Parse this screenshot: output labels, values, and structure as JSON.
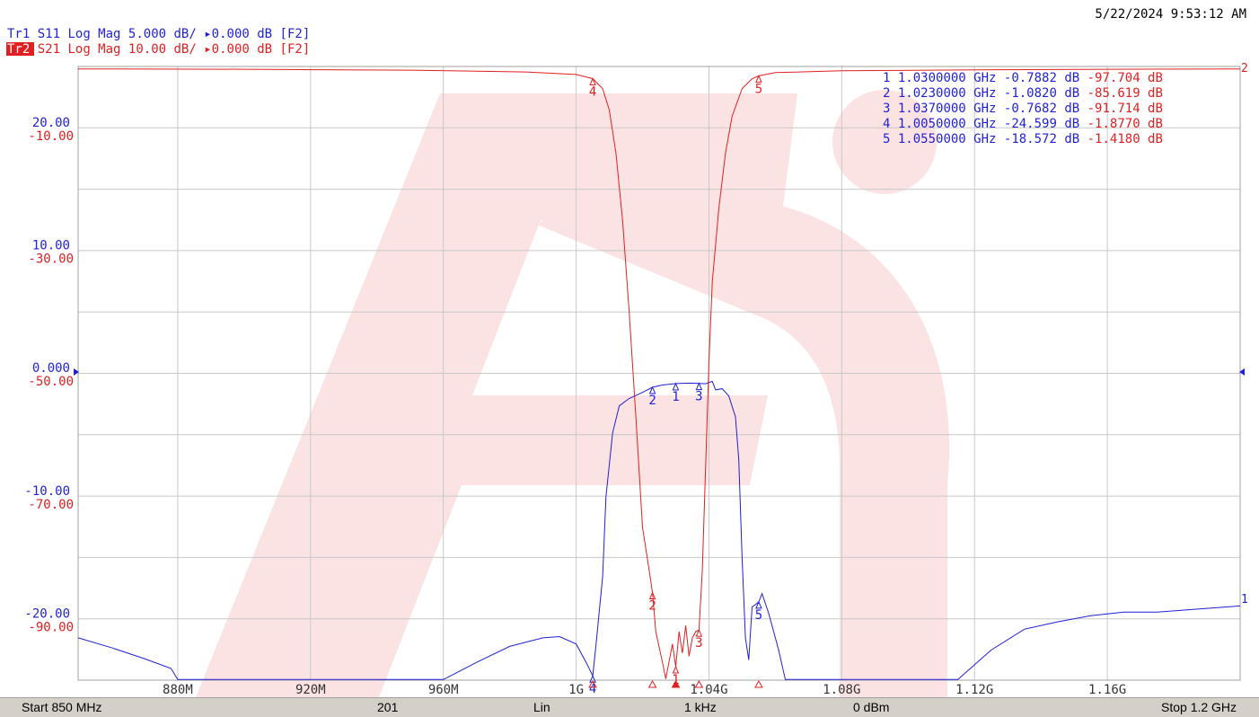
{
  "timestamp": "5/22/2024 9:53:12 AM",
  "traces": [
    {
      "tag": "Tr1",
      "param": "S11",
      "format": "Log Mag",
      "scale": "5.000 dB/",
      "ref_sym": "▸",
      "ref": "0.000 dB",
      "channel": "[F2]",
      "color": "#1f1fd6",
      "active": false
    },
    {
      "tag": "Tr2",
      "param": "S21",
      "format": "Log Mag",
      "scale": "10.00 dB/",
      "ref_sym": "▸",
      "ref": "0.000 dB",
      "channel": "[F2]",
      "color": "#e02020",
      "active": true
    }
  ],
  "marker_table": [
    {
      "num": "1",
      "freq": "1.0300000 GHz",
      "s11": "-0.7882 dB",
      "s21": "-97.704 dB"
    },
    {
      "num": "2",
      "freq": "1.0230000 GHz",
      "s11": "-1.0820 dB",
      "s21": "-85.619 dB"
    },
    {
      "num": "3",
      "freq": "1.0370000 GHz",
      "s11": "-0.7682 dB",
      "s21": "-91.714 dB"
    },
    {
      "num": "4",
      "freq": "1.0050000 GHz",
      "s11": "-24.599 dB",
      "s21": "-1.8770 dB"
    },
    {
      "num": "5",
      "freq": "1.0550000 GHz",
      "s11": "-18.572 dB",
      "s21": "-1.4180 dB"
    }
  ],
  "status": {
    "start": "Start 850 MHz",
    "points": "201",
    "sweep": "Lin",
    "ifbw": "1 kHz",
    "power": "0 dBm",
    "stop": "Stop 1.2 GHz"
  },
  "colors": {
    "s11": "#1f1fd6",
    "s21": "#e02020",
    "grid": "#c8c8c8",
    "watermark": "#fbe3e3"
  },
  "chart_data": {
    "type": "line",
    "x_unit": "MHz",
    "xlim": [
      850,
      1200
    ],
    "x_ticks": [
      {
        "v": 880,
        "label": "880M"
      },
      {
        "v": 920,
        "label": "920M"
      },
      {
        "v": 960,
        "label": "960M"
      },
      {
        "v": 1000,
        "label": "1G"
      },
      {
        "v": 1040,
        "label": "1.04G"
      },
      {
        "v": 1080,
        "label": "1.08G"
      },
      {
        "v": 1120,
        "label": "1.12G"
      },
      {
        "v": 1160,
        "label": "1.16G"
      }
    ],
    "y_left_ticks": [
      {
        "s11": "20.00",
        "s21": "-10.00"
      },
      {
        "s11": "10.00",
        "s21": "-30.00"
      },
      {
        "s11": "0.000",
        "s21": "-50.00"
      },
      {
        "s11": "-10.00",
        "s21": "-70.00"
      },
      {
        "s11": "-20.00",
        "s21": "-90.00"
      }
    ],
    "grid": true,
    "series": [
      {
        "name": "S11",
        "ylim": [
          -24.95,
          25.05
        ],
        "points": [
          [
            850,
            -21.5
          ],
          [
            860,
            -22.3
          ],
          [
            870,
            -23.2
          ],
          [
            878,
            -24.0
          ],
          [
            880,
            -24.9
          ],
          [
            960,
            -24.9
          ],
          [
            970,
            -23.5
          ],
          [
            980,
            -22.2
          ],
          [
            990,
            -21.5
          ],
          [
            995,
            -21.4
          ],
          [
            1000,
            -22.0
          ],
          [
            1003,
            -23.5
          ],
          [
            1005,
            -24.599
          ],
          [
            1006,
            -22.0
          ],
          [
            1008,
            -16.5
          ],
          [
            1009,
            -10.0
          ],
          [
            1011,
            -4.8
          ],
          [
            1013,
            -2.6
          ],
          [
            1016,
            -2.0
          ],
          [
            1020,
            -1.5
          ],
          [
            1023,
            -1.082
          ],
          [
            1026,
            -0.9
          ],
          [
            1030,
            -0.7882
          ],
          [
            1034,
            -0.75
          ],
          [
            1037,
            -0.7682
          ],
          [
            1039,
            -0.8
          ],
          [
            1041,
            -0.6
          ],
          [
            1042,
            -1.3
          ],
          [
            1044,
            -1.2
          ],
          [
            1046,
            -1.8
          ],
          [
            1048,
            -3.5
          ],
          [
            1049,
            -7.0
          ],
          [
            1050,
            -15.0
          ],
          [
            1051,
            -21.5
          ],
          [
            1052,
            -23.3
          ],
          [
            1053,
            -19.0
          ],
          [
            1055,
            -18.572
          ],
          [
            1056,
            -17.9
          ],
          [
            1058,
            -19.5
          ],
          [
            1061,
            -22.5
          ],
          [
            1063,
            -24.9
          ],
          [
            1115,
            -24.9
          ],
          [
            1125,
            -22.5
          ],
          [
            1135,
            -20.8
          ],
          [
            1145,
            -20.2
          ],
          [
            1155,
            -19.7
          ],
          [
            1165,
            -19.4
          ],
          [
            1175,
            -19.4
          ],
          [
            1185,
            -19.2
          ],
          [
            1200,
            -18.9
          ]
        ]
      },
      {
        "name": "S21",
        "ylim": [
          -99.9,
          0.1
        ],
        "points": [
          [
            850,
            -0.3
          ],
          [
            900,
            -0.35
          ],
          [
            950,
            -0.5
          ],
          [
            985,
            -0.8
          ],
          [
            1000,
            -1.2
          ],
          [
            1005,
            -1.877
          ],
          [
            1008,
            -3.5
          ],
          [
            1010,
            -7.0
          ],
          [
            1012,
            -14.0
          ],
          [
            1014,
            -25.0
          ],
          [
            1016,
            -40.0
          ],
          [
            1018,
            -57.0
          ],
          [
            1020,
            -75.0
          ],
          [
            1022,
            -82.0
          ],
          [
            1023,
            -85.619
          ],
          [
            1024,
            -92.0
          ],
          [
            1026,
            -97.0
          ],
          [
            1027,
            -99.7
          ],
          [
            1029,
            -94.0
          ],
          [
            1030,
            -97.704
          ],
          [
            1031,
            -92.0
          ],
          [
            1032,
            -95.5
          ],
          [
            1033,
            -91.0
          ],
          [
            1034,
            -96.0
          ],
          [
            1035,
            -93.0
          ],
          [
            1036,
            -92.0
          ],
          [
            1037,
            -91.714
          ],
          [
            1038,
            -82.0
          ],
          [
            1039,
            -65.0
          ],
          [
            1040,
            -48.0
          ],
          [
            1041,
            -35.0
          ],
          [
            1043,
            -23.0
          ],
          [
            1045,
            -14.0
          ],
          [
            1047,
            -8.0
          ],
          [
            1050,
            -3.5
          ],
          [
            1053,
            -1.9
          ],
          [
            1055,
            -1.418
          ],
          [
            1060,
            -0.9
          ],
          [
            1080,
            -0.6
          ],
          [
            1120,
            -0.45
          ],
          [
            1160,
            -0.35
          ],
          [
            1200,
            -0.3
          ]
        ]
      }
    ],
    "markers": [
      {
        "label": "1",
        "x": 1030
      },
      {
        "label": "2",
        "x": 1023
      },
      {
        "label": "3",
        "x": 1037
      },
      {
        "label": "4",
        "x": 1005
      },
      {
        "label": "5",
        "x": 1055
      }
    ]
  }
}
